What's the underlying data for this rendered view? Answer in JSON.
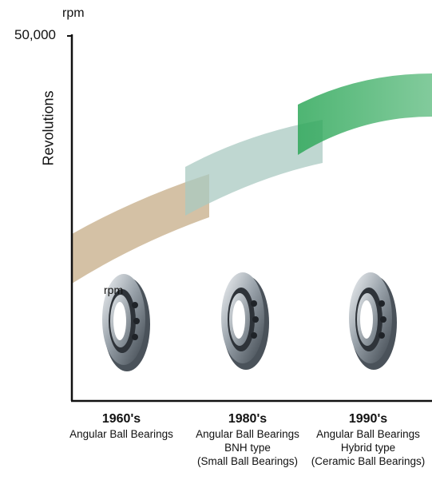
{
  "chart_data": {
    "type": "area",
    "title": "",
    "xlabel": "",
    "ylabel": "Revolutions",
    "y_unit": "rpm",
    "y_ticks": [
      "50,000"
    ],
    "grid": false,
    "legend": "none",
    "series": [
      {
        "era": "1960's",
        "color": "#c9b28e"
      },
      {
        "era": "1980's",
        "color": "#a9c9c2"
      },
      {
        "era": "1990's",
        "color": "#2fa85a"
      }
    ],
    "categories": [
      {
        "year": "1960's",
        "lines": [
          "Angular Ball Bearings"
        ]
      },
      {
        "year": "1980's",
        "lines": [
          "Angular Ball Bearings",
          "BNH type",
          "(Small Ball Bearings)"
        ]
      },
      {
        "year": "1990's",
        "lines": [
          "Angular Ball Bearings",
          "Hybrid type",
          "(Ceramic Ball Bearings)"
        ]
      }
    ],
    "overlay_label": "rpm"
  },
  "icons": [
    "bearing-icon",
    "bearing-icon",
    "bearing-icon"
  ]
}
